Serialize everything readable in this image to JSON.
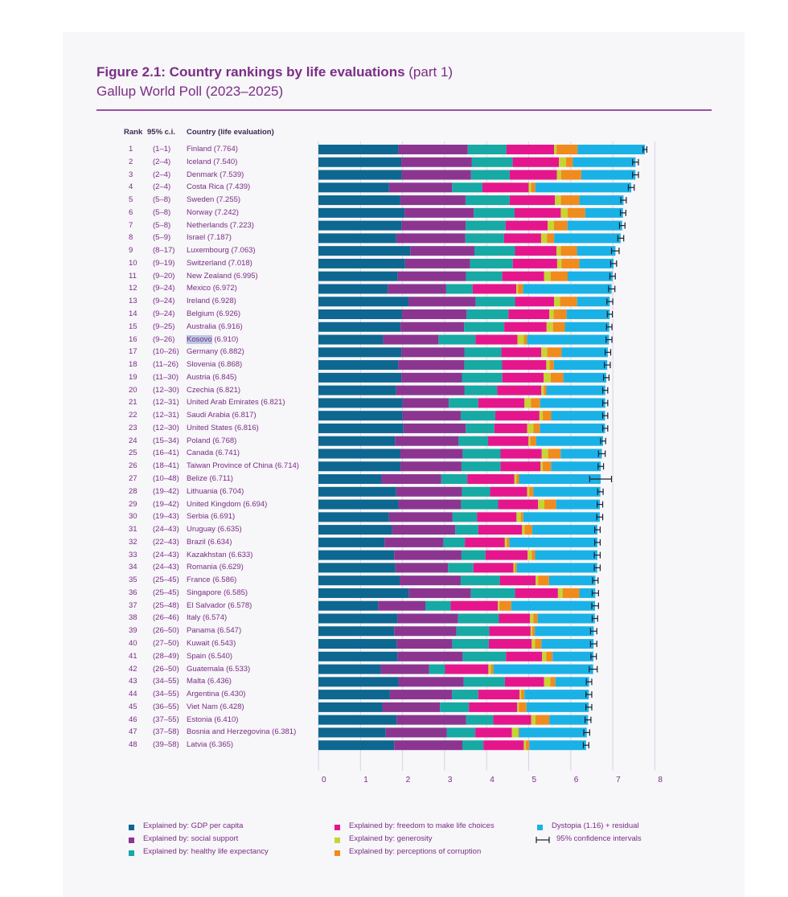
{
  "header": {
    "title": "Figure 2.1: Country rankings by life evaluations",
    "title_suffix": "(part 1)",
    "subtitle": "Gallup World Poll (2023–2025)"
  },
  "columns": {
    "rank": "Rank",
    "ci": "95% c.i.",
    "country": "Country (life evaluation)"
  },
  "colors": {
    "gdp": "#0d6790",
    "social": "#8c3590",
    "health": "#17a9a3",
    "freedom": "#e5168c",
    "generosity": "#c6d532",
    "corruption": "#f08b1d",
    "dystopia": "#1ab2e6"
  },
  "chart_data": {
    "type": "bar",
    "orientation": "horizontal",
    "stacked": true,
    "xlim": [
      0,
      8
    ],
    "xticks": [
      "0",
      "1",
      "2",
      "3",
      "4",
      "5",
      "6",
      "7",
      "8"
    ],
    "legend": [
      {
        "key": "gdp",
        "label": "Explained by: GDP per capita"
      },
      {
        "key": "social",
        "label": "Explained by: social support"
      },
      {
        "key": "health",
        "label": "Explained by: healthy life expectancy"
      },
      {
        "key": "freedom",
        "label": "Explained by: freedom to make life choices"
      },
      {
        "key": "generosity",
        "label": "Explained by: generosity"
      },
      {
        "key": "corruption",
        "label": "Explained by: perceptions of corruption"
      },
      {
        "key": "dystopia",
        "label": "Dystopia (1.16) + residual"
      },
      {
        "key": "ci",
        "label": "95% confidence intervals"
      }
    ],
    "series_order": [
      "gdp",
      "social",
      "health",
      "freedom",
      "generosity",
      "corruption",
      "dystopia"
    ],
    "rows": [
      {
        "rank": "1",
        "ci": "(1–1)",
        "country": "Finland (7.764)",
        "score": 7.764,
        "lo": 7.72,
        "hi": 7.81,
        "v": [
          1.9,
          1.65,
          0.92,
          1.13,
          0.06,
          0.5,
          1.6
        ]
      },
      {
        "rank": "2",
        "ci": "(2–4)",
        "country": "Iceland (7.540)",
        "score": 7.54,
        "lo": 7.47,
        "hi": 7.61,
        "v": [
          1.97,
          1.68,
          0.97,
          1.1,
          0.17,
          0.16,
          1.49
        ]
      },
      {
        "rank": "3",
        "ci": "(2–4)",
        "country": "Denmark (7.539)",
        "score": 7.539,
        "lo": 7.47,
        "hi": 7.61,
        "v": [
          1.98,
          1.65,
          0.92,
          1.12,
          0.1,
          0.48,
          1.29
        ]
      },
      {
        "rank": "4",
        "ci": "(2–4)",
        "country": "Costa Rica (7.439)",
        "score": 7.439,
        "lo": 7.37,
        "hi": 7.51,
        "v": [
          1.68,
          1.5,
          0.72,
          1.1,
          0.06,
          0.1,
          2.28
        ]
      },
      {
        "rank": "5",
        "ci": "(5–8)",
        "country": "Sweden (7.255)",
        "score": 7.255,
        "lo": 7.19,
        "hi": 7.32,
        "v": [
          1.95,
          1.55,
          1.05,
          1.08,
          0.14,
          0.44,
          1.05
        ]
      },
      {
        "rank": "6",
        "ci": "(5–8)",
        "country": "Norway (7.242)",
        "score": 7.242,
        "lo": 7.18,
        "hi": 7.31,
        "v": [
          2.05,
          1.65,
          0.97,
          1.1,
          0.16,
          0.42,
          0.9
        ]
      },
      {
        "rank": "7",
        "ci": "(5–8)",
        "country": "Netherlands (7.223)",
        "score": 7.223,
        "lo": 7.16,
        "hi": 7.29,
        "v": [
          1.98,
          1.52,
          0.95,
          1.0,
          0.15,
          0.32,
          1.3
        ]
      },
      {
        "rank": "8",
        "ci": "(5–9)",
        "country": "Israel (7.187)",
        "score": 7.187,
        "lo": 7.12,
        "hi": 7.26,
        "v": [
          1.85,
          1.64,
          0.92,
          0.88,
          0.14,
          0.17,
          1.58
        ]
      },
      {
        "rank": "9",
        "ci": "(8–17)",
        "country": "Luxembourg (7.063)",
        "score": 7.063,
        "lo": 6.97,
        "hi": 7.15,
        "v": [
          2.15,
          1.5,
          0.95,
          0.97,
          0.1,
          0.38,
          0.9
        ]
      },
      {
        "rank": "10",
        "ci": "(9–19)",
        "country": "Switzerland (7.018)",
        "score": 7.018,
        "lo": 6.95,
        "hi": 7.09,
        "v": [
          2.03,
          1.52,
          1.0,
          1.04,
          0.1,
          0.42,
          0.8
        ]
      },
      {
        "rank": "11",
        "ci": "(9–20)",
        "country": "New Zealand (6.995)",
        "score": 6.995,
        "lo": 6.93,
        "hi": 7.06,
        "v": [
          1.85,
          1.6,
          0.85,
          0.98,
          0.15,
          0.4,
          1.05
        ]
      },
      {
        "rank": "12",
        "ci": "(9–24)",
        "country": "Mexico (6.972)",
        "score": 6.972,
        "lo": 6.9,
        "hi": 7.05,
        "v": [
          1.62,
          1.37,
          0.62,
          1.02,
          0.04,
          0.12,
          2.07
        ]
      },
      {
        "rank": "13",
        "ci": "(9–24)",
        "country": "Ireland (6.928)",
        "score": 6.928,
        "lo": 6.86,
        "hi": 7.0,
        "v": [
          2.12,
          1.58,
          0.93,
          0.92,
          0.14,
          0.4,
          0.77
        ]
      },
      {
        "rank": "14",
        "ci": "(9–24)",
        "country": "Belgium (6.926)",
        "score": 6.926,
        "lo": 6.87,
        "hi": 6.99,
        "v": [
          1.94,
          1.5,
          0.97,
          0.95,
          0.1,
          0.3,
          1.0
        ]
      },
      {
        "rank": "15",
        "ci": "(9–25)",
        "country": "Australia (6.916)",
        "score": 6.916,
        "lo": 6.85,
        "hi": 6.98,
        "v": [
          1.94,
          1.5,
          0.95,
          1.0,
          0.15,
          0.28,
          1.05
        ]
      },
      {
        "rank": "16",
        "ci": "(9–26)",
        "country": "Kosovo (6.910)",
        "score": 6.91,
        "lo": 6.84,
        "hi": 6.98,
        "v": [
          1.54,
          1.32,
          0.88,
          1.0,
          0.15,
          0.08,
          1.95
        ],
        "highlight": "Kosovo"
      },
      {
        "rank": "17",
        "ci": "(10–26)",
        "country": "Germany (6.882)",
        "score": 6.882,
        "lo": 6.82,
        "hi": 6.95,
        "v": [
          1.97,
          1.5,
          0.88,
          0.95,
          0.14,
          0.34,
          1.1
        ]
      },
      {
        "rank": "18",
        "ci": "(11–26)",
        "country": "Slovenia (6.868)",
        "score": 6.868,
        "lo": 6.8,
        "hi": 6.94,
        "v": [
          1.9,
          1.57,
          0.9,
          1.05,
          0.08,
          0.1,
          1.27
        ]
      },
      {
        "rank": "19",
        "ci": "(11–30)",
        "country": "Austria (6.845)",
        "score": 6.845,
        "lo": 6.78,
        "hi": 6.91,
        "v": [
          1.97,
          1.44,
          0.96,
          0.98,
          0.17,
          0.3,
          1.02
        ]
      },
      {
        "rank": "20",
        "ci": "(12–30)",
        "country": "Czechia (6.821)",
        "score": 6.821,
        "lo": 6.76,
        "hi": 6.88,
        "v": [
          1.85,
          1.62,
          0.78,
          1.05,
          0.06,
          0.06,
          1.4
        ]
      },
      {
        "rank": "21",
        "ci": "(12–31)",
        "country": "United Arab Emirates (6.821)",
        "score": 6.821,
        "lo": 6.76,
        "hi": 6.88,
        "v": [
          2.0,
          1.1,
          0.7,
          1.1,
          0.15,
          0.22,
          1.55
        ]
      },
      {
        "rank": "22",
        "ci": "(12–31)",
        "country": "Saudi Arabia (6.817)",
        "score": 6.817,
        "lo": 6.76,
        "hi": 6.88,
        "v": [
          2.0,
          1.38,
          0.82,
          1.05,
          0.08,
          0.2,
          1.28
        ]
      },
      {
        "rank": "23",
        "ci": "(12–30)",
        "country": "United States (6.816)",
        "score": 6.816,
        "lo": 6.76,
        "hi": 6.88,
        "v": [
          2.02,
          1.48,
          0.68,
          0.78,
          0.15,
          0.15,
          1.55
        ]
      },
      {
        "rank": "24",
        "ci": "(15–34)",
        "country": "Poland (6.768)",
        "score": 6.768,
        "lo": 6.71,
        "hi": 6.83,
        "v": [
          1.82,
          1.51,
          0.7,
          0.96,
          0.04,
          0.14,
          1.59
        ]
      },
      {
        "rank": "25",
        "ci": "(16–41)",
        "country": "Canada (6.741)",
        "score": 6.741,
        "lo": 6.66,
        "hi": 6.82,
        "v": [
          1.95,
          1.48,
          0.9,
          0.98,
          0.15,
          0.3,
          0.98
        ]
      },
      {
        "rank": "26",
        "ci": "(18–41)",
        "country": "Taiwan Province of China (6.714)",
        "score": 6.714,
        "lo": 6.65,
        "hi": 6.78,
        "v": [
          1.95,
          1.45,
          0.93,
          0.95,
          0.05,
          0.2,
          1.18
        ]
      },
      {
        "rank": "27",
        "ci": "(10–48)",
        "country": "Belize (6.711)",
        "score": 6.711,
        "lo": 6.45,
        "hi": 6.97,
        "v": [
          1.5,
          1.42,
          0.62,
          1.12,
          0.05,
          0.06,
          1.94
        ]
      },
      {
        "rank": "28",
        "ci": "(19–42)",
        "country": "Lithuania (6.704)",
        "score": 6.704,
        "lo": 6.64,
        "hi": 6.77,
        "v": [
          1.85,
          1.56,
          0.67,
          0.88,
          0.05,
          0.1,
          1.59
        ]
      },
      {
        "rank": "29",
        "ci": "(19–42)",
        "country": "United Kingdom (6.694)",
        "score": 6.694,
        "lo": 6.63,
        "hi": 6.76,
        "v": [
          1.9,
          1.49,
          0.88,
          0.95,
          0.15,
          0.28,
          1.04
        ]
      },
      {
        "rank": "30",
        "ci": "(19–43)",
        "country": "Serbia (6.691)",
        "score": 6.691,
        "lo": 6.62,
        "hi": 6.76,
        "v": [
          1.68,
          1.51,
          0.58,
          0.94,
          0.1,
          0.06,
          1.82
        ]
      },
      {
        "rank": "31",
        "ci": "(24–43)",
        "country": "Uruguay (6.635)",
        "score": 6.635,
        "lo": 6.57,
        "hi": 6.7,
        "v": [
          1.75,
          1.5,
          0.55,
          1.04,
          0.06,
          0.18,
          1.55
        ]
      },
      {
        "rank": "32",
        "ci": "(22–43)",
        "country": "Brazil (6.634)",
        "score": 6.634,
        "lo": 6.57,
        "hi": 6.7,
        "v": [
          1.57,
          1.4,
          0.51,
          0.95,
          0.05,
          0.06,
          2.09
        ]
      },
      {
        "rank": "33",
        "ci": "(24–43)",
        "country": "Kazakhstan (6.633)",
        "score": 6.633,
        "lo": 6.56,
        "hi": 6.7,
        "v": [
          1.8,
          1.6,
          0.57,
          1.0,
          0.1,
          0.08,
          1.48
        ]
      },
      {
        "rank": "34",
        "ci": "(24–43)",
        "country": "Romania (6.629)",
        "score": 6.629,
        "lo": 6.56,
        "hi": 6.7,
        "v": [
          1.83,
          1.25,
          0.6,
          0.95,
          0.04,
          0.04,
          1.91
        ]
      },
      {
        "rank": "35",
        "ci": "(25–45)",
        "country": "France (6.586)",
        "score": 6.586,
        "lo": 6.52,
        "hi": 6.65,
        "v": [
          1.93,
          1.45,
          0.93,
          0.85,
          0.06,
          0.26,
          1.1
        ]
      },
      {
        "rank": "36",
        "ci": "(25–45)",
        "country": "Singapore (6.585)",
        "score": 6.585,
        "lo": 6.51,
        "hi": 6.66,
        "v": [
          2.15,
          1.48,
          1.05,
          1.02,
          0.11,
          0.4,
          0.38
        ]
      },
      {
        "rank": "37",
        "ci": "(25–48)",
        "country": "El Salvador (6.578)",
        "score": 6.578,
        "lo": 6.5,
        "hi": 6.66,
        "v": [
          1.42,
          1.12,
          0.6,
          1.12,
          0.04,
          0.28,
          1.99
        ]
      },
      {
        "rank": "38",
        "ci": "(26–46)",
        "country": "Italy (6.574)",
        "score": 6.574,
        "lo": 6.51,
        "hi": 6.64,
        "v": [
          1.88,
          1.44,
          0.97,
          0.74,
          0.08,
          0.1,
          1.36
        ]
      },
      {
        "rank": "39",
        "ci": "(26–50)",
        "country": "Panama (6.547)",
        "score": 6.547,
        "lo": 6.47,
        "hi": 6.62,
        "v": [
          1.8,
          1.48,
          0.78,
          0.98,
          0.04,
          0.06,
          1.4
        ]
      },
      {
        "rank": "40",
        "ci": "(27–50)",
        "country": "Kuwait (6.543)",
        "score": 6.543,
        "lo": 6.47,
        "hi": 6.62,
        "v": [
          1.86,
          1.32,
          0.87,
          1.02,
          0.08,
          0.15,
          1.24
        ]
      },
      {
        "rank": "41",
        "ci": "(28–49)",
        "country": "Spain (6.540)",
        "score": 6.54,
        "lo": 6.48,
        "hi": 6.61,
        "v": [
          1.88,
          1.55,
          1.03,
          0.86,
          0.1,
          0.15,
          0.97
        ]
      },
      {
        "rank": "42",
        "ci": "(26–50)",
        "country": "Guatemala (6.533)",
        "score": 6.533,
        "lo": 6.44,
        "hi": 6.63,
        "v": [
          1.48,
          1.15,
          0.38,
          1.03,
          0.06,
          0.06,
          2.37
        ]
      },
      {
        "rank": "43",
        "ci": "(34–55)",
        "country": "Malta (6.436)",
        "score": 6.436,
        "lo": 6.37,
        "hi": 6.5,
        "v": [
          1.9,
          1.55,
          0.98,
          0.93,
          0.15,
          0.12,
          0.8
        ]
      },
      {
        "rank": "44",
        "ci": "(34–55)",
        "country": "Argentina (6.430)",
        "score": 6.43,
        "lo": 6.36,
        "hi": 6.5,
        "v": [
          1.7,
          1.48,
          0.62,
          0.98,
          0.04,
          0.08,
          1.53
        ]
      },
      {
        "rank": "45",
        "ci": "(36–55)",
        "country": "Viet Nam (6.428)",
        "score": 6.428,
        "lo": 6.36,
        "hi": 6.5,
        "v": [
          1.52,
          1.37,
          0.69,
          1.15,
          0.04,
          0.18,
          1.48
        ]
      },
      {
        "rank": "46",
        "ci": "(37–55)",
        "country": "Estonia (6.410)",
        "score": 6.41,
        "lo": 6.34,
        "hi": 6.48,
        "v": [
          1.86,
          1.65,
          0.65,
          0.9,
          0.1,
          0.33,
          0.92
        ]
      },
      {
        "rank": "47",
        "ci": "(37–58)",
        "country": "Bosnia and Herzegovina (6.381)",
        "score": 6.381,
        "lo": 6.31,
        "hi": 6.45,
        "v": [
          1.6,
          1.45,
          0.68,
          0.87,
          0.15,
          0.02,
          1.61
        ]
      },
      {
        "rank": "48",
        "ci": "(39–58)",
        "country": "Latvia (6.365)",
        "score": 6.365,
        "lo": 6.3,
        "hi": 6.43,
        "v": [
          1.8,
          1.62,
          0.5,
          0.96,
          0.05,
          0.08,
          1.35
        ]
      }
    ]
  }
}
